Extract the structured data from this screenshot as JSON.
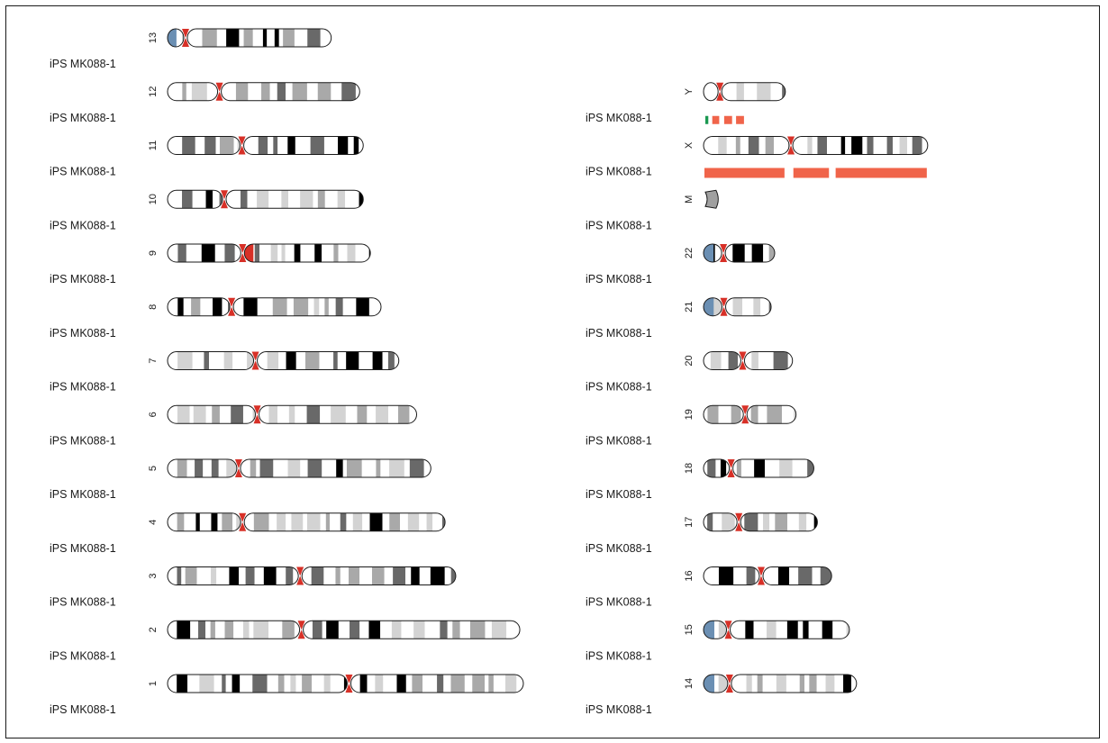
{
  "figure": {
    "sample_label": "iPS MK088-1",
    "colors": {
      "band_gneg": "#ffffff",
      "band_gpos25": "#d3d3d3",
      "band_gpos50": "#a9a9a9",
      "band_gpos75": "#696969",
      "band_gpos100": "#000000",
      "band_gvar": "#6b8fb3",
      "centromere": "#d73027",
      "outline": "#1a1a1a",
      "mt": "#a0a0a0",
      "track_red": "#f0644a",
      "track_green": "#1a9850"
    },
    "left_column": [
      {
        "name": "13",
        "length": 0.46,
        "centromere": 0.11,
        "stalk": true
      },
      {
        "name": "12",
        "length": 0.54,
        "centromere": 0.27
      },
      {
        "name": "11",
        "length": 0.55,
        "centromere": 0.38
      },
      {
        "name": "10",
        "length": 0.55,
        "centromere": 0.29
      },
      {
        "name": "9",
        "length": 0.57,
        "centromere": 0.37,
        "heterochromatin": true
      },
      {
        "name": "8",
        "length": 0.6,
        "centromere": 0.3
      },
      {
        "name": "7",
        "length": 0.65,
        "centromere": 0.38
      },
      {
        "name": "6",
        "length": 0.7,
        "centromere": 0.36
      },
      {
        "name": "5",
        "length": 0.74,
        "centromere": 0.27
      },
      {
        "name": "4",
        "length": 0.78,
        "centromere": 0.27
      },
      {
        "name": "3",
        "length": 0.81,
        "centromere": 0.46
      },
      {
        "name": "2",
        "length": 0.99,
        "centromere": 0.38
      },
      {
        "name": "1",
        "length": 1.0,
        "centromere": 0.51
      }
    ],
    "right_column": [
      {
        "name": "Y",
        "length": 0.23,
        "centromere": 0.2
      },
      {
        "name": "X",
        "length": 0.63,
        "centromere": 0.39,
        "tracks": [
          {
            "color": "track_red",
            "segments": [
              [
                0.0,
                0.36
              ],
              [
                0.4,
                0.56
              ],
              [
                0.59,
                1.0
              ]
            ]
          }
        ]
      },
      {
        "name": "M",
        "length": 0.035,
        "centromere": null,
        "mito": true
      },
      {
        "name": "22",
        "length": 0.2,
        "centromere": 0.28,
        "stalk": true
      },
      {
        "name": "21",
        "length": 0.19,
        "centromere": 0.3,
        "stalk": true
      },
      {
        "name": "20",
        "length": 0.25,
        "centromere": 0.44
      },
      {
        "name": "19",
        "length": 0.26,
        "centromere": 0.45
      },
      {
        "name": "18",
        "length": 0.31,
        "centromere": 0.25
      },
      {
        "name": "17",
        "length": 0.32,
        "centromere": 0.31
      },
      {
        "name": "16",
        "length": 0.36,
        "centromere": 0.45
      },
      {
        "name": "15",
        "length": 0.41,
        "centromere": 0.17,
        "stalk": true
      },
      {
        "name": "14",
        "length": 0.43,
        "centromere": 0.17,
        "stalk": true
      }
    ],
    "y_tracks": [
      {
        "color": "track_green",
        "segments": [
          [
            0.0,
            0.03
          ]
        ]
      },
      {
        "color": "track_red",
        "segments": [
          [
            0.07,
            0.14
          ],
          [
            0.19,
            0.27
          ],
          [
            0.31,
            0.39
          ]
        ]
      }
    ]
  }
}
